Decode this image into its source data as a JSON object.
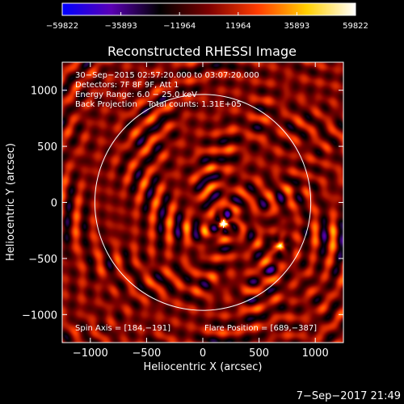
{
  "chart_data": {
    "type": "heatmap",
    "title": "Reconstructed RHESSI Image",
    "xlabel": "Heliocentric X (arcsec)",
    "ylabel": "Heliocentric Y (arcsec)",
    "xlim": [
      -1250,
      1250
    ],
    "ylim": [
      -1250,
      1250
    ],
    "x_ticks": [
      -1000,
      -500,
      0,
      500,
      1000
    ],
    "y_ticks": [
      -1000,
      -500,
      0,
      500,
      1000
    ],
    "x_tick_labels": [
      "−1000",
      "−500",
      "0",
      "500",
      "1000"
    ],
    "y_tick_labels": [
      "−1000",
      "−500",
      "0",
      "500",
      "1000"
    ],
    "colorbar": {
      "range": [
        -59822,
        59822
      ],
      "ticks": [
        -59822,
        -35893,
        -11964,
        11964,
        35893,
        59822
      ],
      "tick_labels": [
        "−59822",
        "−35893",
        "−11964",
        "11964",
        "35893",
        "59822"
      ],
      "colors": [
        "#0000ff",
        "#5a00b4",
        "#000000",
        "#7d0000",
        "#ff3c00",
        "#ffcf00",
        "#ffffff"
      ]
    },
    "info_lines": [
      "30−Sep−2015 02:57:20.000 to 03:07:20.000",
      "Detectors: 7F 8F 9F, Att 1",
      "Energy Range: 6.0 − 25.0 keV",
      "Back Projection    Total counts: 1.31E+05"
    ],
    "spin_axis": "Spin Axis = [184,−191]",
    "flare_position": "Flare Position = [689,−387]",
    "solar_disk": {
      "center": [
        0,
        0
      ],
      "radius": 960
    },
    "sources": [
      {
        "x": 184,
        "y": -191,
        "peak": 59822
      },
      {
        "x": 689,
        "y": -387,
        "peak": 42000
      }
    ],
    "grid": false
  },
  "footer": {
    "timestamp": "7−Sep−2017 21:49"
  }
}
